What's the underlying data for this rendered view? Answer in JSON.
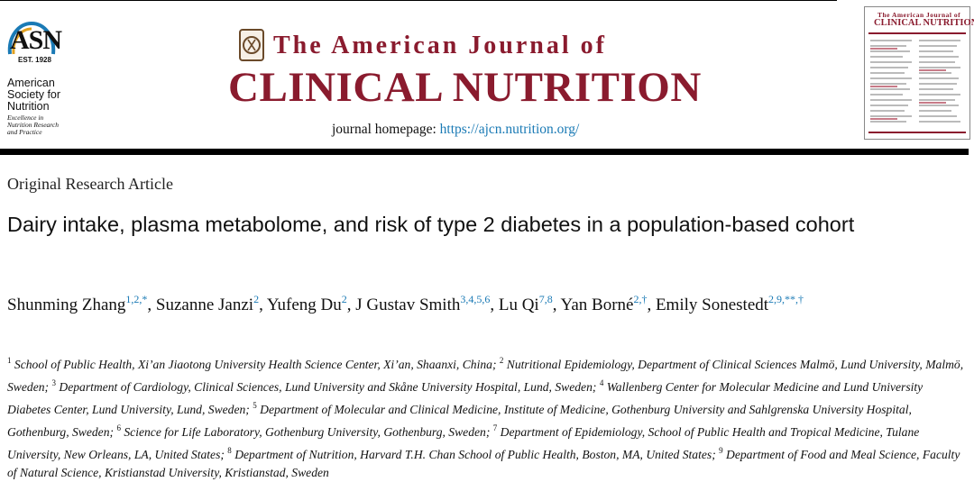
{
  "society": {
    "logo_letters": "ASN",
    "est": "EST. 1928",
    "name_lines": [
      "American",
      "Society for",
      "Nutrition"
    ],
    "tagline_lines": [
      "Excellence in",
      "Nutrition Research",
      "and Practice"
    ]
  },
  "journal": {
    "title_line1": "The American Journal of",
    "title_line2": "CLINICAL NUTRITION",
    "homepage_label": "journal homepage:",
    "homepage_url": "https://ajcn.nutrition.org/",
    "brand_color": "#8a1b2e",
    "link_color": "#1a7ab5",
    "cover_title_line1": "The American Journal of",
    "cover_title_line2": "CLINICAL NUTRITION"
  },
  "article": {
    "type": "Original Research Article",
    "title": "Dairy intake, plasma metabolome, and risk of type 2 diabetes in a population-based cohort",
    "authors": [
      {
        "name": "Shunming Zhang",
        "sup": "1,2,*"
      },
      {
        "name": "Suzanne Janzi",
        "sup": "2"
      },
      {
        "name": "Yufeng Du",
        "sup": "2"
      },
      {
        "name": "J Gustav Smith",
        "sup": "3,4,5,6"
      },
      {
        "name": "Lu Qi",
        "sup": "7,8"
      },
      {
        "name": "Yan Borné",
        "sup": "2,†"
      },
      {
        "name": "Emily Sonestedt",
        "sup": "2,9,**,†"
      }
    ],
    "affiliations": [
      {
        "num": "1",
        "text": "School of Public Health, Xi’an Jiaotong University Health Science Center, Xi’an, Shaanxi, China;"
      },
      {
        "num": "2",
        "text": "Nutritional Epidemiology, Department of Clinical Sciences Malmö, Lund University, Malmö, Sweden;"
      },
      {
        "num": "3",
        "text": "Department of Cardiology, Clinical Sciences, Lund University and Skåne University Hospital, Lund, Sweden;"
      },
      {
        "num": "4",
        "text": "Wallenberg Center for Molecular Medicine and Lund University Diabetes Center, Lund University, Lund, Sweden;"
      },
      {
        "num": "5",
        "text": "Department of Molecular and Clinical Medicine, Institute of Medicine, Gothenburg University and Sahlgrenska University Hospital, Gothenburg, Sweden;"
      },
      {
        "num": "6",
        "text": "Science for Life Laboratory, Gothenburg University, Gothenburg, Sweden;"
      },
      {
        "num": "7",
        "text": "Department of Epidemiology, School of Public Health and Tropical Medicine, Tulane University, New Orleans, LA, United States;"
      },
      {
        "num": "8",
        "text": "Department of Nutrition, Harvard T.H. Chan School of Public Health, Boston, MA, United States;"
      },
      {
        "num": "9",
        "text": "Department of Food and Meal Science, Faculty of Natural Science, Kristianstad University, Kristianstad, Sweden"
      }
    ]
  }
}
